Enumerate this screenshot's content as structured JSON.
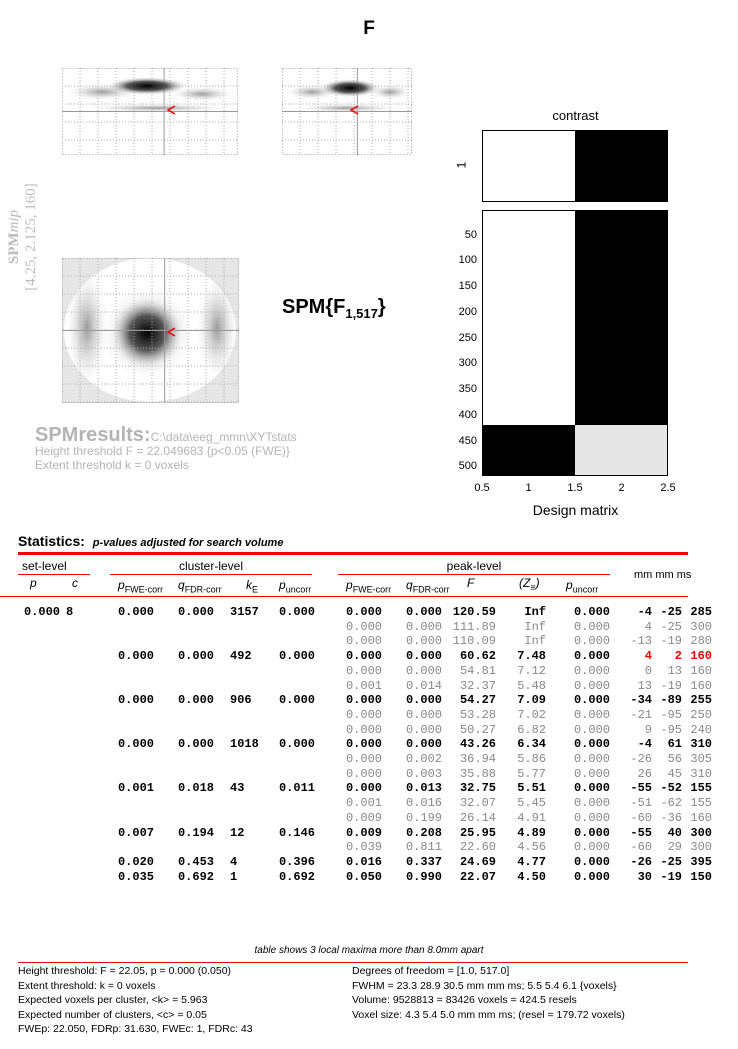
{
  "title": "F",
  "mip_label": {
    "name": "SPM",
    "suffix": "mip",
    "coords": "[4.25, 2.125, 160]"
  },
  "stat_label": {
    "main": "SPM{F",
    "sub": "1,517",
    "close": "}"
  },
  "results": {
    "heading": "SPMresults:",
    "path": "C:\\data\\eeg_mmn\\XYTstats",
    "height_threshold": "Height threshold F = 22.049683  {p<0.05 (FWE)}",
    "extent_threshold": "Extent threshold k = 0 voxels"
  },
  "design": {
    "contrast_title": "contrast",
    "contrast_ytick": "1",
    "xlabel": "Design matrix",
    "xticks": [
      "0.5",
      "1",
      "1.5",
      "2",
      "2.5"
    ],
    "yticks": [
      "50",
      "100",
      "150",
      "200",
      "250",
      "300",
      "350",
      "400",
      "450",
      "500"
    ],
    "rows": 517,
    "split_row": 420,
    "contrast_colors": [
      "#ffffff",
      "#000000"
    ],
    "blocks": {
      "upper": [
        "#ffffff",
        "#000000"
      ],
      "lower": [
        "#000000",
        "#e6e6e6"
      ]
    }
  },
  "statistics": {
    "title": "Statistics:",
    "subtitle": "p-values adjusted for search volume",
    "groups": {
      "set": "set-level",
      "cluster": "cluster-level",
      "peak": "peak-level",
      "coords": "mm mm ms"
    },
    "cols": {
      "set_p": "p",
      "set_c": "c",
      "pfwe": {
        "m": "p",
        "s": "FWE-corr"
      },
      "qfdr": {
        "m": "q",
        "s": "FDR-corr"
      },
      "ke": {
        "m": "k",
        "s": "E"
      },
      "punc": {
        "m": "p",
        "s": "uncorr"
      },
      "f": "F",
      "z": {
        "m": "(Z",
        "s": "≡",
        "e": ")"
      }
    },
    "set": {
      "p": "0.000",
      "c": "8"
    },
    "rows": [
      {
        "main": true,
        "cluster": [
          "0.000",
          "0.000",
          "3157",
          "0.000"
        ],
        "peak": [
          "0.000",
          "0.000",
          "120.59",
          "Inf",
          "0.000"
        ],
        "xyz": [
          "-4",
          "-25",
          "285"
        ]
      },
      {
        "main": false,
        "peak": [
          "0.000",
          "0.000",
          "111.89",
          "Inf",
          "0.000"
        ],
        "xyz": [
          "4",
          "-25",
          "300"
        ]
      },
      {
        "main": false,
        "peak": [
          "0.000",
          "0.000",
          "110.09",
          "Inf",
          "0.000"
        ],
        "xyz": [
          "-13",
          "-19",
          "280"
        ]
      },
      {
        "main": true,
        "current": true,
        "cluster": [
          "0.000",
          "0.000",
          "492",
          "0.000"
        ],
        "peak": [
          "0.000",
          "0.000",
          "60.62",
          "7.48",
          "0.000"
        ],
        "xyz": [
          "4",
          "2",
          "160"
        ]
      },
      {
        "main": false,
        "peak": [
          "0.000",
          "0.000",
          "54.81",
          "7.12",
          "0.000"
        ],
        "xyz": [
          "0",
          "13",
          "160"
        ]
      },
      {
        "main": false,
        "peak": [
          "0.001",
          "0.014",
          "32.37",
          "5.48",
          "0.000"
        ],
        "xyz": [
          "13",
          "-19",
          "160"
        ]
      },
      {
        "main": true,
        "cluster": [
          "0.000",
          "0.000",
          "906",
          "0.000"
        ],
        "peak": [
          "0.000",
          "0.000",
          "54.27",
          "7.09",
          "0.000"
        ],
        "xyz": [
          "-34",
          "-89",
          "255"
        ]
      },
      {
        "main": false,
        "peak": [
          "0.000",
          "0.000",
          "53.28",
          "7.02",
          "0.000"
        ],
        "xyz": [
          "-21",
          "-95",
          "250"
        ]
      },
      {
        "main": false,
        "peak": [
          "0.000",
          "0.000",
          "50.27",
          "6.82",
          "0.000"
        ],
        "xyz": [
          "9",
          "-95",
          "240"
        ]
      },
      {
        "main": true,
        "cluster": [
          "0.000",
          "0.000",
          "1018",
          "0.000"
        ],
        "peak": [
          "0.000",
          "0.000",
          "43.26",
          "6.34",
          "0.000"
        ],
        "xyz": [
          "-4",
          "61",
          "310"
        ]
      },
      {
        "main": false,
        "peak": [
          "0.000",
          "0.002",
          "36.94",
          "5.86",
          "0.000"
        ],
        "xyz": [
          "-26",
          "56",
          "305"
        ]
      },
      {
        "main": false,
        "peak": [
          "0.000",
          "0.003",
          "35.88",
          "5.77",
          "0.000"
        ],
        "xyz": [
          "26",
          "45",
          "310"
        ]
      },
      {
        "main": true,
        "cluster": [
          "0.001",
          "0.018",
          "43",
          "0.011"
        ],
        "peak": [
          "0.000",
          "0.013",
          "32.75",
          "5.51",
          "0.000"
        ],
        "xyz": [
          "-55",
          "-52",
          "155"
        ]
      },
      {
        "main": false,
        "peak": [
          "0.001",
          "0.016",
          "32.07",
          "5.45",
          "0.000"
        ],
        "xyz": [
          "-51",
          "-62",
          "155"
        ]
      },
      {
        "main": false,
        "peak": [
          "0.009",
          "0.199",
          "26.14",
          "4.91",
          "0.000"
        ],
        "xyz": [
          "-60",
          "-36",
          "160"
        ]
      },
      {
        "main": true,
        "cluster": [
          "0.007",
          "0.194",
          "12",
          "0.146"
        ],
        "peak": [
          "0.009",
          "0.208",
          "25.95",
          "4.89",
          "0.000"
        ],
        "xyz": [
          "-55",
          "40",
          "300"
        ]
      },
      {
        "main": false,
        "peak": [
          "0.039",
          "0.811",
          "22.60",
          "4.56",
          "0.000"
        ],
        "xyz": [
          "-60",
          "29",
          "300"
        ]
      },
      {
        "main": true,
        "cluster": [
          "0.020",
          "0.453",
          "4",
          "0.396"
        ],
        "peak": [
          "0.016",
          "0.337",
          "24.69",
          "4.77",
          "0.000"
        ],
        "xyz": [
          "-26",
          "-25",
          "395"
        ]
      },
      {
        "main": true,
        "cluster": [
          "0.035",
          "0.692",
          "1",
          "0.692"
        ],
        "peak": [
          "0.050",
          "0.990",
          "22.07",
          "4.50",
          "0.000"
        ],
        "xyz": [
          "30",
          "-19",
          "150"
        ]
      }
    ],
    "highlight_color": "#e00000"
  },
  "footer": {
    "note": "table shows 3 local maxima more than 8.0mm apart",
    "left": [
      "Height threshold: F = 22.05, p = 0.000 (0.050)",
      "Extent threshold: k = 0 voxels",
      "Expected voxels per cluster, <k> = 5.963",
      "Expected number of clusters, <c> = 0.05",
      "FWEp: 22.050, FDRp: 31.630, FWEc: 1, FDRc: 43"
    ],
    "right": [
      "Degrees of freedom = [1.0, 517.0]",
      "FWHM = 23.3 28.9 30.5 mm mm ms; 5.5 5.4 6.1 {voxels}",
      "Volume: 9528813 = 83426 voxels = 424.5 resels",
      "Voxel size: 4.3 5.4 5.0 mm mm ms; (resel = 179.72 voxels)"
    ]
  }
}
